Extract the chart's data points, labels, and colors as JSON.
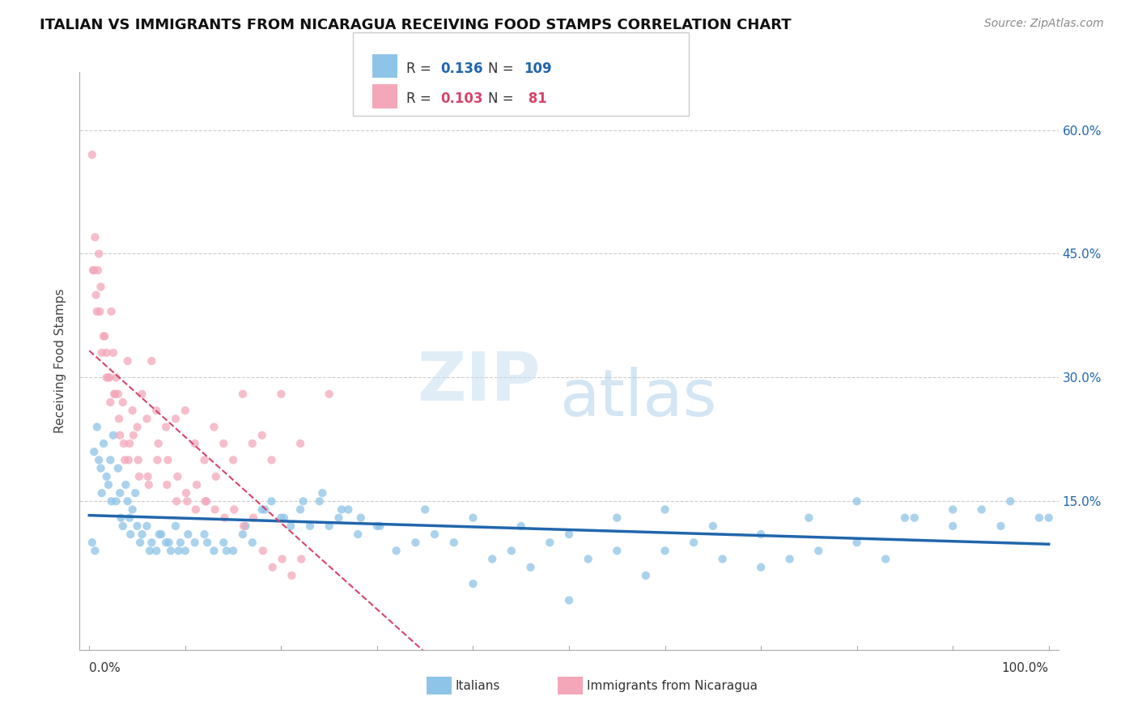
{
  "title": "ITALIAN VS IMMIGRANTS FROM NICARAGUA RECEIVING FOOD STAMPS CORRELATION CHART",
  "source": "Source: ZipAtlas.com",
  "ylabel": "Receiving Food Stamps",
  "color_blue": "#8ec4e8",
  "color_pink": "#f4a7b9",
  "color_blue_dark": "#2166ac",
  "color_pink_dark": "#d6456a",
  "italians_x": [
    0.5,
    0.8,
    1.0,
    1.2,
    1.5,
    1.8,
    2.0,
    2.2,
    2.5,
    2.8,
    3.0,
    3.2,
    3.5,
    3.8,
    4.0,
    4.2,
    4.5,
    4.8,
    5.0,
    5.5,
    6.0,
    6.5,
    7.0,
    7.5,
    8.0,
    8.5,
    9.0,
    9.5,
    10.0,
    11.0,
    12.0,
    13.0,
    14.0,
    15.0,
    16.0,
    17.0,
    18.0,
    19.0,
    20.0,
    21.0,
    22.0,
    23.0,
    24.0,
    25.0,
    26.0,
    27.0,
    28.0,
    30.0,
    32.0,
    34.0,
    36.0,
    38.0,
    40.0,
    42.0,
    44.0,
    46.0,
    48.0,
    50.0,
    52.0,
    55.0,
    58.0,
    60.0,
    63.0,
    66.0,
    70.0,
    73.0,
    76.0,
    80.0,
    83.0,
    86.0,
    90.0,
    93.0,
    96.0,
    99.0,
    1.3,
    2.3,
    3.3,
    4.3,
    5.3,
    6.3,
    7.3,
    8.3,
    9.3,
    10.3,
    12.3,
    14.3,
    16.3,
    18.3,
    20.3,
    22.3,
    24.3,
    26.3,
    28.3,
    30.3,
    35.0,
    40.0,
    45.0,
    50.0,
    55.0,
    60.0,
    65.0,
    70.0,
    75.0,
    80.0,
    85.0,
    90.0,
    95.0,
    100.0,
    0.3,
    0.6
  ],
  "italians_y": [
    0.21,
    0.24,
    0.2,
    0.19,
    0.22,
    0.18,
    0.17,
    0.2,
    0.23,
    0.15,
    0.19,
    0.16,
    0.12,
    0.17,
    0.15,
    0.13,
    0.14,
    0.16,
    0.12,
    0.11,
    0.12,
    0.1,
    0.09,
    0.11,
    0.1,
    0.09,
    0.12,
    0.1,
    0.09,
    0.1,
    0.11,
    0.09,
    0.1,
    0.09,
    0.11,
    0.1,
    0.14,
    0.15,
    0.13,
    0.12,
    0.14,
    0.12,
    0.15,
    0.12,
    0.13,
    0.14,
    0.11,
    0.12,
    0.09,
    0.1,
    0.11,
    0.1,
    0.05,
    0.08,
    0.09,
    0.07,
    0.1,
    0.03,
    0.08,
    0.09,
    0.06,
    0.09,
    0.1,
    0.08,
    0.07,
    0.08,
    0.09,
    0.1,
    0.08,
    0.13,
    0.12,
    0.14,
    0.15,
    0.13,
    0.16,
    0.15,
    0.13,
    0.11,
    0.1,
    0.09,
    0.11,
    0.1,
    0.09,
    0.11,
    0.1,
    0.09,
    0.12,
    0.14,
    0.13,
    0.15,
    0.16,
    0.14,
    0.13,
    0.12,
    0.14,
    0.13,
    0.12,
    0.11,
    0.13,
    0.14,
    0.12,
    0.11,
    0.13,
    0.15,
    0.13,
    0.14,
    0.12,
    0.13,
    0.1,
    0.09
  ],
  "nicaragua_x": [
    0.3,
    0.5,
    0.8,
    1.0,
    1.2,
    1.5,
    1.8,
    2.0,
    2.3,
    2.5,
    2.8,
    3.0,
    3.5,
    4.0,
    4.5,
    5.0,
    5.5,
    6.0,
    6.5,
    7.0,
    8.0,
    9.0,
    10.0,
    11.0,
    12.0,
    13.0,
    14.0,
    15.0,
    16.0,
    17.0,
    18.0,
    19.0,
    20.0,
    22.0,
    25.0,
    0.4,
    0.7,
    1.3,
    1.8,
    2.2,
    2.7,
    3.2,
    3.7,
    4.2,
    5.2,
    6.2,
    7.2,
    8.2,
    9.2,
    10.2,
    11.2,
    12.2,
    13.2,
    0.6,
    0.9,
    1.1,
    1.6,
    2.1,
    2.6,
    3.1,
    3.6,
    4.1,
    4.6,
    5.1,
    6.1,
    7.1,
    8.1,
    9.1,
    10.1,
    11.1,
    12.1,
    13.1,
    14.1,
    15.1,
    16.1,
    17.1,
    18.1,
    19.1,
    20.1,
    21.1,
    22.1
  ],
  "nicaragua_y": [
    0.57,
    0.43,
    0.38,
    0.45,
    0.41,
    0.35,
    0.33,
    0.3,
    0.38,
    0.33,
    0.3,
    0.28,
    0.27,
    0.32,
    0.26,
    0.24,
    0.28,
    0.25,
    0.32,
    0.26,
    0.24,
    0.25,
    0.26,
    0.22,
    0.2,
    0.24,
    0.22,
    0.2,
    0.28,
    0.22,
    0.23,
    0.2,
    0.28,
    0.22,
    0.28,
    0.43,
    0.4,
    0.33,
    0.3,
    0.27,
    0.28,
    0.23,
    0.2,
    0.22,
    0.18,
    0.17,
    0.22,
    0.2,
    0.18,
    0.15,
    0.17,
    0.15,
    0.18,
    0.47,
    0.43,
    0.38,
    0.35,
    0.3,
    0.28,
    0.25,
    0.22,
    0.2,
    0.23,
    0.2,
    0.18,
    0.2,
    0.17,
    0.15,
    0.16,
    0.14,
    0.15,
    0.14,
    0.13,
    0.14,
    0.12,
    0.13,
    0.09,
    0.07,
    0.08,
    0.06,
    0.08
  ],
  "y_ticks": [
    0.0,
    0.15,
    0.3,
    0.45,
    0.6
  ],
  "y_tick_labels": [
    "",
    "15.0%",
    "30.0%",
    "45.0%",
    "60.0%"
  ]
}
